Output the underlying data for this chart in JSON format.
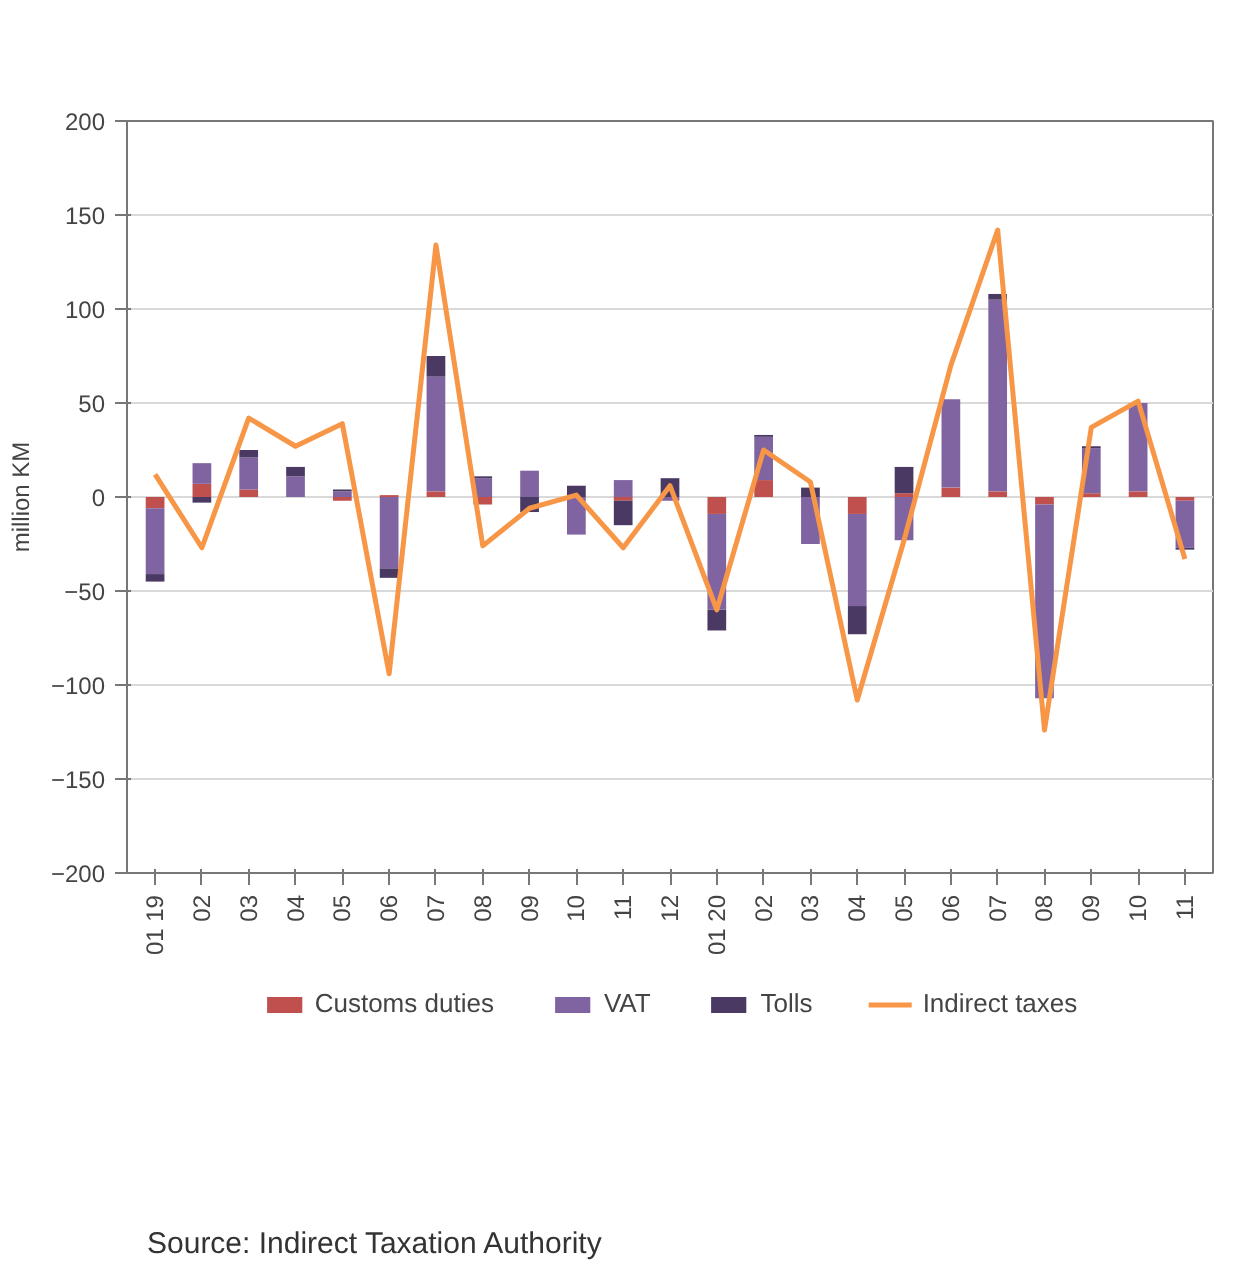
{
  "chart_data": {
    "type": "bar",
    "stacked": true,
    "ylabel": "million KM",
    "categories": [
      "01 19",
      "02",
      "03",
      "04",
      "05",
      "06",
      "07",
      "08",
      "09",
      "10",
      "11",
      "12",
      "01 20",
      "02",
      "03",
      "04",
      "05",
      "06",
      "07",
      "08",
      "09",
      "10",
      "11"
    ],
    "series": [
      {
        "name": "Customs duties",
        "color": "#c0504d",
        "values": [
          -6,
          7,
          4,
          0,
          -2,
          1,
          3,
          -4,
          0,
          0,
          -2,
          null,
          -9,
          9,
          0,
          -9,
          2,
          5,
          3,
          -4,
          2,
          3,
          -2
        ]
      },
      {
        "name": "VAT",
        "color": "#8064a2",
        "values": [
          -35,
          11,
          17,
          11,
          3,
          -38,
          61,
          10,
          14,
          -20,
          9,
          -2,
          -51,
          23,
          -25,
          -49,
          -23,
          47,
          102,
          -103,
          24,
          47,
          -25
        ]
      },
      {
        "name": "Tolls",
        "color": "#4a3a63",
        "values": [
          -4,
          -3,
          4,
          5,
          1,
          -5,
          11,
          1,
          -8,
          6,
          -13,
          10,
          -11,
          1,
          5,
          -15,
          14,
          0,
          3,
          null,
          1,
          null,
          -1
        ]
      },
      {
        "name": "Indirect taxes",
        "type": "line",
        "color": "#f79646",
        "values": [
          12,
          -27,
          42,
          27,
          39,
          -94,
          134,
          -26,
          -6,
          1,
          -27,
          6,
          -60,
          25,
          8,
          -108,
          -23,
          70,
          142,
          -124,
          37,
          51,
          -33
        ]
      }
    ],
    "ylim": [
      -200,
      200
    ],
    "yticks": [
      -200,
      -150,
      -100,
      -50,
      0,
      50,
      100,
      150,
      200
    ],
    "grid": "y",
    "legend": "bottom",
    "annotations": [
      "Source: Indirect Taxation Authority"
    ]
  }
}
